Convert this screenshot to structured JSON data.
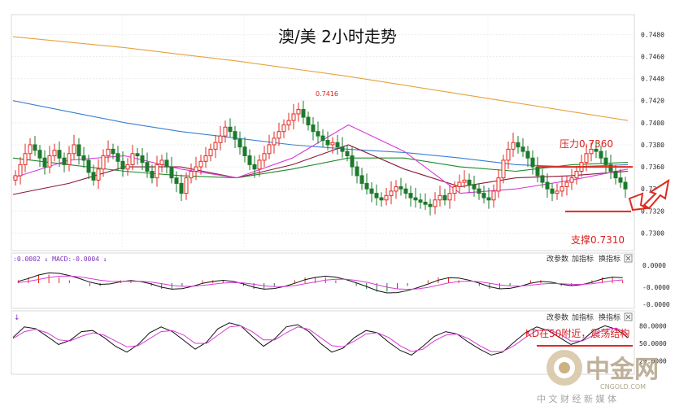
{
  "chart_data": {
    "type": "candlestick",
    "title": "澳/美 2小时走势",
    "ylim": [
      0.729,
      0.7495
    ],
    "y_ticks": [
      "0.7480",
      "0.7460",
      "0.7440",
      "0.7420",
      "0.7400",
      "0.7380",
      "0.7360",
      "0.7340",
      "0.7320",
      "0.7300"
    ],
    "peak_label": "0.7416",
    "annotations": {
      "resistance": {
        "label": "压力0.7360",
        "value": 0.736
      },
      "support": {
        "label": "支撑0.7310",
        "value": 0.731
      }
    },
    "close": [
      0.7352,
      0.7362,
      0.7372,
      0.738,
      0.7375,
      0.7368,
      0.736,
      0.737,
      0.7375,
      0.7368,
      0.7362,
      0.7372,
      0.738,
      0.737,
      0.7366,
      0.7355,
      0.7348,
      0.7358,
      0.737,
      0.7376,
      0.7372,
      0.7365,
      0.7358,
      0.7362,
      0.7372,
      0.737,
      0.7364,
      0.7356,
      0.735,
      0.7362,
      0.7366,
      0.736,
      0.735,
      0.7345,
      0.7336,
      0.735,
      0.7356,
      0.736,
      0.7365,
      0.737,
      0.7376,
      0.7382,
      0.7388,
      0.7396,
      0.7392,
      0.7385,
      0.7378,
      0.737,
      0.7362,
      0.7358,
      0.7366,
      0.7372,
      0.738,
      0.7386,
      0.7392,
      0.7398,
      0.7402,
      0.7408,
      0.7412,
      0.7405,
      0.7398,
      0.7392,
      0.7388,
      0.7384,
      0.738,
      0.7382,
      0.7378,
      0.7374,
      0.737,
      0.736,
      0.7352,
      0.7345,
      0.734,
      0.7336,
      0.7332,
      0.733,
      0.7334,
      0.7338,
      0.7342,
      0.734,
      0.7336,
      0.7332,
      0.733,
      0.7328,
      0.7326,
      0.7324,
      0.733,
      0.7334,
      0.733,
      0.7336,
      0.7342,
      0.7346,
      0.7348,
      0.7344,
      0.734,
      0.7336,
      0.7332,
      0.733,
      0.7338,
      0.735,
      0.7366,
      0.7376,
      0.7382,
      0.7378,
      0.7374,
      0.7368,
      0.736,
      0.7352,
      0.7346,
      0.734,
      0.7336,
      0.7338,
      0.7342,
      0.7346,
      0.735,
      0.7356,
      0.7364,
      0.7372,
      0.7376,
      0.7374,
      0.7368,
      0.7362,
      0.7356,
      0.735,
      0.7346,
      0.734
    ],
    "series": [
      {
        "name": "",
        "type": "ma",
        "color": "#e6a23c",
        "values": [
          0.7478,
          0.7473,
          0.7468,
          0.7462,
          0.7456,
          0.7449,
          0.7442,
          0.7434,
          0.7426,
          0.7418,
          0.741,
          0.7402
        ]
      },
      {
        "name": "",
        "type": "ma",
        "color": "#3a7fd0",
        "values": [
          0.742,
          0.741,
          0.74,
          0.7392,
          0.7386,
          0.738,
          0.7376,
          0.7373,
          0.7368,
          0.7362,
          0.736,
          0.7362
        ]
      },
      {
        "name": "",
        "type": "ma",
        "color": "#1f8a2c",
        "values": [
          0.7368,
          0.7362,
          0.7356,
          0.7352,
          0.735,
          0.7358,
          0.7368,
          0.7368,
          0.736,
          0.7356,
          0.7362,
          0.7364
        ]
      },
      {
        "name": "",
        "type": "ma",
        "color": "#8b1a3a",
        "values": [
          0.7335,
          0.7345,
          0.736,
          0.736,
          0.735,
          0.7362,
          0.738,
          0.7358,
          0.7342,
          0.735,
          0.7352,
          0.7356
        ]
      },
      {
        "name": "",
        "type": "ma",
        "color": "#d83ad8",
        "values": [
          0.735,
          0.7366,
          0.737,
          0.7358,
          0.735,
          0.7368,
          0.7398,
          0.7374,
          0.7336,
          0.734,
          0.7348,
          0.7358
        ]
      }
    ],
    "macd": {
      "header": ":0.0002 ↓ MACD:-0.0004 ↓",
      "y_ticks": [
        "0.0000",
        "-0.0000",
        "-0.0000"
      ],
      "hist": [
        1,
        2,
        3,
        3,
        2,
        1,
        0,
        -1,
        -1,
        0,
        1,
        1,
        0,
        -1,
        -2,
        -2,
        -1,
        0,
        1,
        1,
        1,
        0,
        -1,
        -2,
        -2,
        -1,
        0,
        1,
        2,
        2,
        2,
        1,
        0,
        -1,
        -2,
        -3,
        -3,
        -2,
        -1,
        0,
        1,
        2,
        2,
        1,
        0,
        -1,
        -2,
        -2,
        -1,
        0,
        1,
        1,
        0,
        -1,
        -1,
        0,
        1,
        2,
        2,
        1
      ],
      "tools": [
        "改参数",
        "加指标",
        "换指标"
      ],
      "close_icon": "close-icon"
    },
    "kd": {
      "y_ticks": [
        "80.0000",
        "50.0000",
        "20.0000"
      ],
      "k": [
        60,
        78,
        75,
        62,
        48,
        55,
        70,
        72,
        60,
        45,
        35,
        48,
        68,
        78,
        70,
        55,
        40,
        52,
        75,
        85,
        80,
        62,
        45,
        58,
        78,
        82,
        70,
        50,
        35,
        42,
        60,
        72,
        68,
        52,
        38,
        30,
        45,
        62,
        70,
        66,
        52,
        40,
        30,
        35,
        52,
        68,
        78,
        72,
        60,
        48,
        55,
        72,
        80,
        74,
        60
      ],
      "d": [
        58,
        70,
        74,
        68,
        56,
        54,
        62,
        68,
        64,
        54,
        44,
        46,
        58,
        70,
        72,
        64,
        50,
        50,
        64,
        78,
        80,
        70,
        56,
        56,
        68,
        78,
        74,
        60,
        46,
        44,
        54,
        66,
        68,
        60,
        46,
        36,
        40,
        54,
        64,
        66,
        58,
        46,
        36,
        36,
        46,
        60,
        72,
        74,
        66,
        54,
        54,
        64,
        74,
        76,
        66
      ],
      "annotation": "KD在50附近，震荡结构",
      "tools": [
        "改参数",
        "加指标",
        "换指标"
      ],
      "close_icon": "close-icon"
    },
    "watermark": {
      "brand": "中金网",
      "url": "CNGOLD.COM",
      "tagline": "中 文 财 经 新 媒 体"
    }
  }
}
